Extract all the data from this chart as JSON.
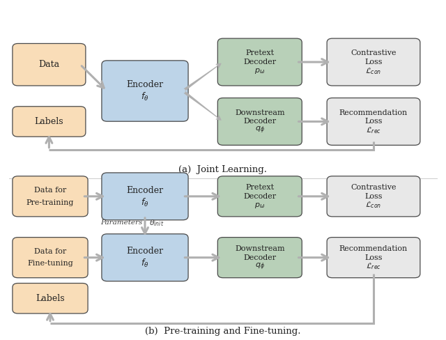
{
  "bg_color": "#ffffff",
  "border_color": "#4a4a4a",
  "arrow_color": "#b0b0b0",
  "orange_fill": "#f9ddb8",
  "blue_fill": "#bdd4e8",
  "green_fill": "#b8d0b8",
  "gray_fill": "#e8e8e8",
  "panel_a_title": "(a)  Joint Learning.",
  "panel_b_title": "(b)  Pre-training and Fine-tuning.",
  "a_data": [
    0.04,
    0.76,
    0.14,
    0.1
  ],
  "a_labels": [
    0.04,
    0.61,
    0.14,
    0.065
  ],
  "a_encoder": [
    0.24,
    0.655,
    0.17,
    0.155
  ],
  "a_pretext": [
    0.5,
    0.76,
    0.165,
    0.115
  ],
  "a_downstream": [
    0.5,
    0.585,
    0.165,
    0.115
  ],
  "a_closs": [
    0.745,
    0.76,
    0.185,
    0.115
  ],
  "a_rloss": [
    0.745,
    0.585,
    0.185,
    0.115
  ],
  "b_datapre": [
    0.04,
    0.375,
    0.145,
    0.095
  ],
  "b_encpre": [
    0.24,
    0.365,
    0.17,
    0.115
  ],
  "b_pretextb": [
    0.5,
    0.375,
    0.165,
    0.095
  ],
  "b_clossb": [
    0.745,
    0.375,
    0.185,
    0.095
  ],
  "b_datafine": [
    0.04,
    0.195,
    0.145,
    0.095
  ],
  "b_encfine": [
    0.24,
    0.185,
    0.17,
    0.115
  ],
  "b_downb": [
    0.5,
    0.195,
    0.165,
    0.095
  ],
  "b_rlossb": [
    0.745,
    0.195,
    0.185,
    0.095
  ],
  "b_labelsb": [
    0.04,
    0.09,
    0.145,
    0.065
  ]
}
